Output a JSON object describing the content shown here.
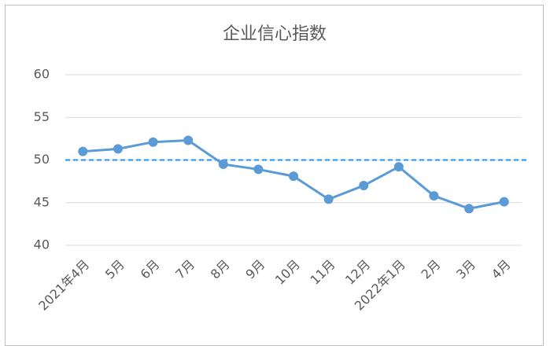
{
  "chart_data": {
    "type": "line",
    "title": "企业信心指数",
    "categories": [
      "2021年4月",
      "5月",
      "6月",
      "7月",
      "8月",
      "9月",
      "10月",
      "11月",
      "12月",
      "2022年1月",
      "2月",
      "3月",
      "4月"
    ],
    "values": [
      51.0,
      51.3,
      52.1,
      52.3,
      49.5,
      48.9,
      48.1,
      45.4,
      47.0,
      49.2,
      45.8,
      44.3,
      45.1
    ],
    "color": "#5b9bd5",
    "ylim": [
      40,
      60
    ],
    "yticks": [
      40,
      45,
      50,
      55,
      60
    ],
    "grid": true,
    "reference_line": {
      "value": 50,
      "color": "#1e90ff"
    }
  }
}
